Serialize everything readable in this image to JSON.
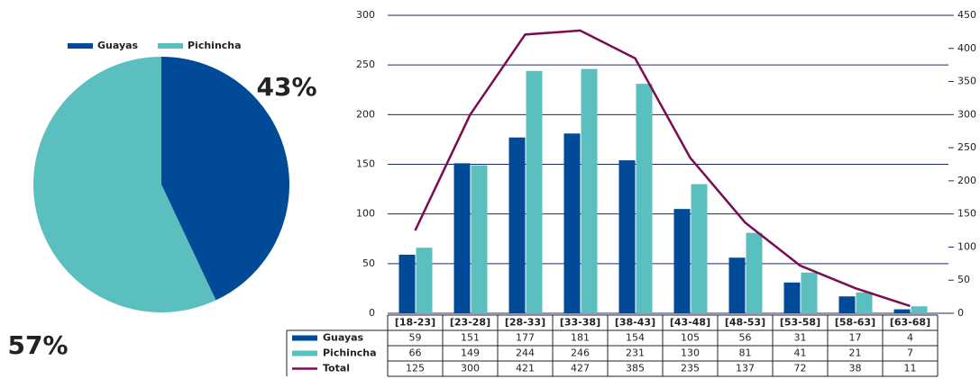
{
  "chart_data": [
    {
      "type": "pie",
      "categories": [
        "Guayas",
        "Pichincha"
      ],
      "values": [
        43,
        57
      ],
      "value_labels": [
        "43%",
        "57%"
      ],
      "colors": [
        "#004a98",
        "#5bbfbf"
      ]
    },
    {
      "type": "bar",
      "categories": [
        "[18-23]",
        "[23-28]",
        "[28-33]",
        "[33-38]",
        "[38-43]",
        "[43-48]",
        "[48-53]",
        "[53-58]",
        "[58-63]",
        "[63-68]"
      ],
      "series": [
        {
          "name": "Guayas",
          "color": "#004a98",
          "values": [
            59,
            151,
            177,
            181,
            154,
            105,
            56,
            31,
            17,
            4
          ]
        },
        {
          "name": "Pichincha",
          "color": "#5bbfbf",
          "values": [
            66,
            149,
            244,
            246,
            231,
            130,
            81,
            41,
            21,
            7
          ]
        },
        {
          "name": "Total",
          "color": "#7a0c4f",
          "type": "line",
          "axis": "y2",
          "values": [
            125,
            300,
            421,
            427,
            385,
            235,
            137,
            72,
            38,
            11
          ]
        }
      ],
      "ylim": [
        0,
        300
      ],
      "yticks": [
        0,
        50,
        100,
        150,
        200,
        250,
        300
      ],
      "y2lim": [
        0,
        450
      ],
      "y2ticks": [
        0,
        50,
        100,
        150,
        200,
        250,
        300,
        350,
        400,
        450
      ],
      "grid": true
    }
  ]
}
